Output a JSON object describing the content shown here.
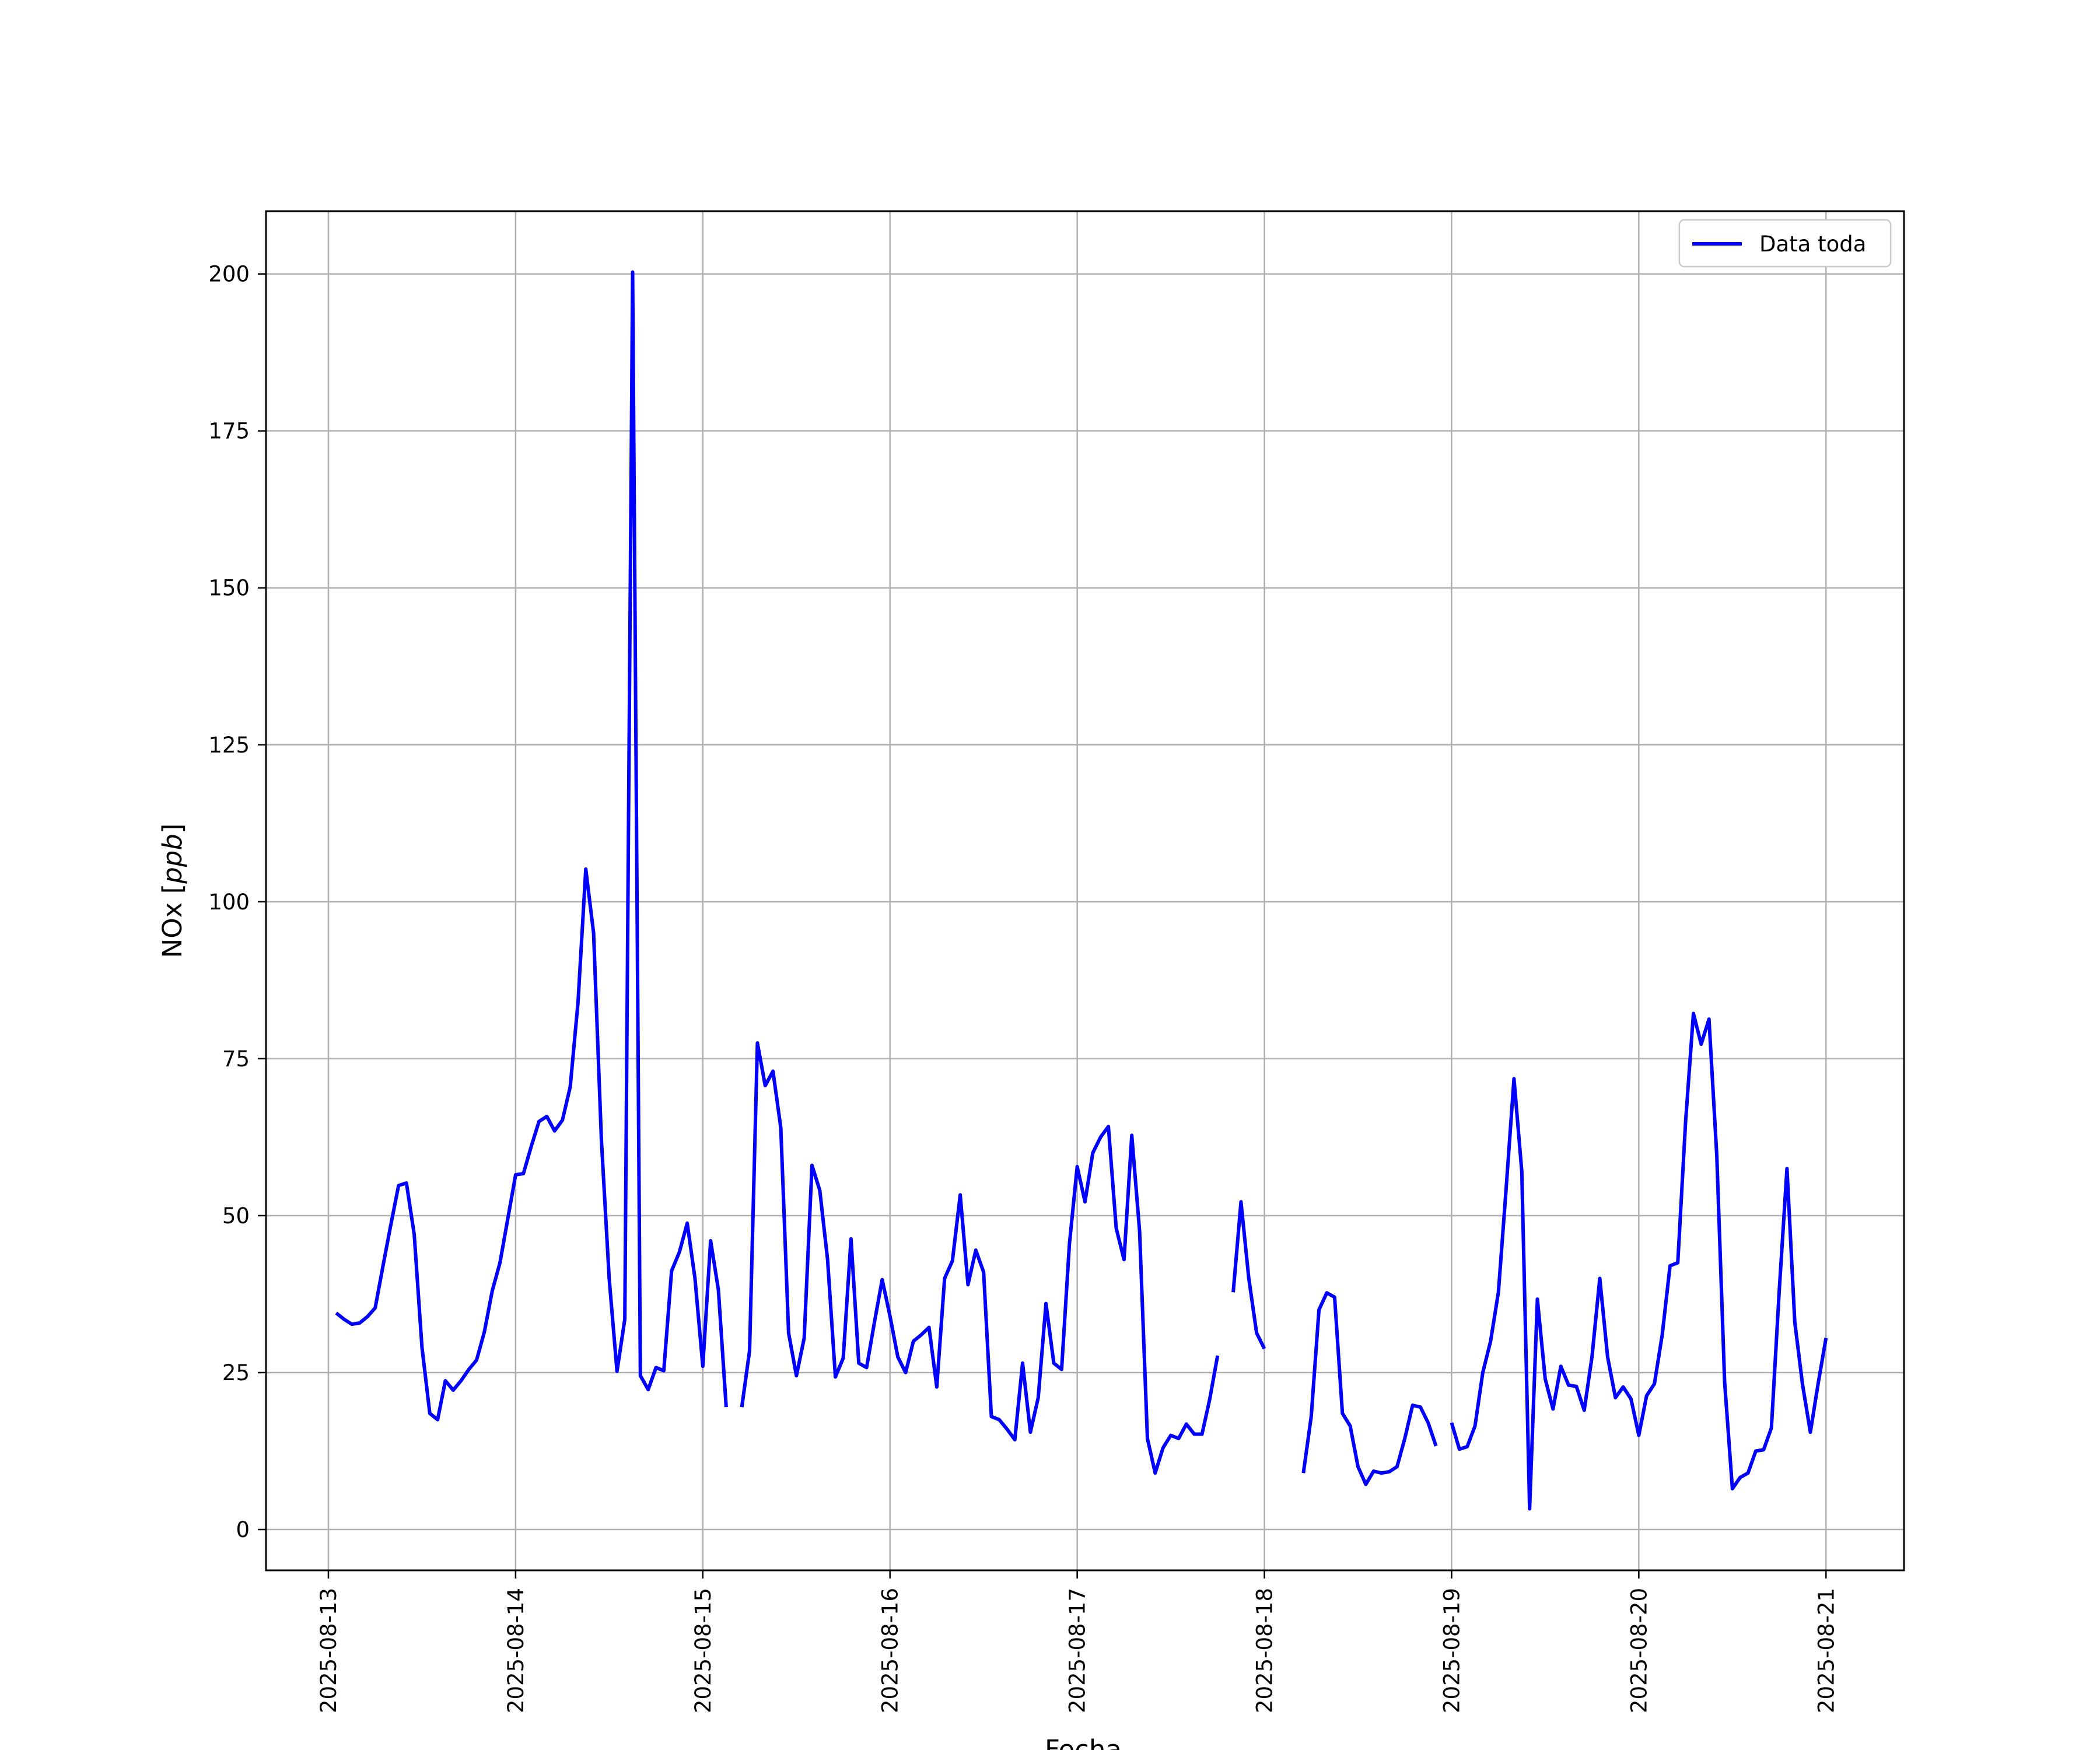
{
  "chart_data": {
    "type": "line",
    "title": "",
    "xlabel": "Fecha",
    "ylabel": "NOx [ppb]",
    "ylabel_main": "NOx [",
    "ylabel_unit": "ppb",
    "ylabel_close": "]",
    "xlim": [
      "2025-08-12 16:00",
      "2025-08-21 10:00"
    ],
    "ylim": [
      -6.5,
      210
    ],
    "x_ticks": [
      "2025-08-13",
      "2025-08-14",
      "2025-08-15",
      "2025-08-16",
      "2025-08-17",
      "2025-08-18",
      "2025-08-19",
      "2025-08-20",
      "2025-08-21"
    ],
    "y_ticks": [
      0,
      25,
      50,
      75,
      100,
      125,
      150,
      175,
      200
    ],
    "grid": true,
    "legend_position": "upper right",
    "line_color": "#0000ff",
    "series": [
      {
        "name": "Data toda",
        "segments": [
          [
            [
              "2025-08-13 01:00",
              34.5
            ],
            [
              "2025-08-13 02:00",
              33.5
            ],
            [
              "2025-08-13 03:00",
              32.7
            ],
            [
              "2025-08-13 04:00",
              32.9
            ],
            [
              "2025-08-13 05:00",
              33.9
            ],
            [
              "2025-08-13 06:00",
              35.3
            ],
            [
              "2025-08-13 07:00",
              42.0
            ],
            [
              "2025-08-13 08:00",
              48.5
            ],
            [
              "2025-08-13 09:00",
              54.8
            ],
            [
              "2025-08-13 10:00",
              55.2
            ],
            [
              "2025-08-13 11:00",
              47.0
            ],
            [
              "2025-08-13 12:00",
              29.0
            ],
            [
              "2025-08-13 13:00",
              18.5
            ],
            [
              "2025-08-13 14:00",
              17.5
            ],
            [
              "2025-08-13 15:00",
              23.7
            ],
            [
              "2025-08-13 16:00",
              22.2
            ],
            [
              "2025-08-13 17:00",
              23.7
            ],
            [
              "2025-08-13 18:00",
              25.5
            ],
            [
              "2025-08-13 19:00",
              27.0
            ],
            [
              "2025-08-13 20:00",
              31.5
            ],
            [
              "2025-08-13 21:00",
              38.0
            ],
            [
              "2025-08-13 22:00",
              42.5
            ],
            [
              "2025-08-13 23:00",
              49.5
            ],
            [
              "2025-08-14 00:00",
              56.5
            ],
            [
              "2025-08-14 01:00",
              56.7
            ],
            [
              "2025-08-14 02:00",
              61.0
            ],
            [
              "2025-08-14 03:00",
              65.0
            ],
            [
              "2025-08-14 04:00",
              65.8
            ],
            [
              "2025-08-14 05:00",
              63.5
            ],
            [
              "2025-08-14 06:00",
              65.2
            ],
            [
              "2025-08-14 07:00",
              70.5
            ],
            [
              "2025-08-14 08:00",
              84.0
            ],
            [
              "2025-08-14 09:00",
              105.2
            ],
            [
              "2025-08-14 10:00",
              95.0
            ],
            [
              "2025-08-14 11:00",
              62.0
            ],
            [
              "2025-08-14 12:00",
              40.0
            ],
            [
              "2025-08-14 13:00",
              25.2
            ],
            [
              "2025-08-14 14:00",
              33.5
            ],
            [
              "2025-08-14 15:00",
              200.3
            ],
            [
              "2025-08-14 16:00",
              24.5
            ],
            [
              "2025-08-14 17:00",
              22.3
            ],
            [
              "2025-08-14 18:00",
              25.8
            ],
            [
              "2025-08-14 19:00",
              25.3
            ],
            [
              "2025-08-14 20:00",
              41.2
            ],
            [
              "2025-08-14 21:00",
              44.2
            ],
            [
              "2025-08-14 22:00",
              48.8
            ],
            [
              "2025-08-14 23:00",
              40.0
            ],
            [
              "2025-08-15 00:00",
              26.0
            ],
            [
              "2025-08-15 01:00",
              46.0
            ],
            [
              "2025-08-15 02:00",
              38.2
            ],
            [
              "2025-08-15 03:00",
              19.5
            ]
          ],
          [
            [
              "2025-08-15 05:00",
              19.5
            ],
            [
              "2025-08-15 06:00",
              28.5
            ],
            [
              "2025-08-15 07:00",
              77.5
            ],
            [
              "2025-08-15 08:00",
              70.7
            ],
            [
              "2025-08-15 09:00",
              73.0
            ],
            [
              "2025-08-15 10:00",
              64.0
            ],
            [
              "2025-08-15 11:00",
              31.3
            ],
            [
              "2025-08-15 12:00",
              24.5
            ],
            [
              "2025-08-15 13:00",
              30.5
            ],
            [
              "2025-08-15 14:00",
              58.0
            ],
            [
              "2025-08-15 15:00",
              54.0
            ],
            [
              "2025-08-15 16:00",
              43.0
            ],
            [
              "2025-08-15 17:00",
              24.3
            ],
            [
              "2025-08-15 18:00",
              27.3
            ],
            [
              "2025-08-15 19:00",
              46.3
            ],
            [
              "2025-08-15 20:00",
              26.5
            ],
            [
              "2025-08-15 21:00",
              25.8
            ],
            [
              "2025-08-15 22:00",
              33.0
            ],
            [
              "2025-08-15 23:00",
              39.8
            ],
            [
              "2025-08-16 00:00",
              34.0
            ],
            [
              "2025-08-16 01:00",
              27.5
            ],
            [
              "2025-08-16 02:00",
              25.0
            ],
            [
              "2025-08-16 03:00",
              30.0
            ],
            [
              "2025-08-16 04:00",
              31.0
            ],
            [
              "2025-08-16 05:00",
              32.2
            ],
            [
              "2025-08-16 06:00",
              22.7
            ],
            [
              "2025-08-16 07:00",
              40.0
            ],
            [
              "2025-08-16 08:00",
              42.8
            ],
            [
              "2025-08-16 09:00",
              53.3
            ],
            [
              "2025-08-16 10:00",
              39.0
            ],
            [
              "2025-08-16 11:00",
              44.5
            ],
            [
              "2025-08-16 12:00",
              41.0
            ],
            [
              "2025-08-16 13:00",
              18.0
            ],
            [
              "2025-08-16 14:00",
              17.5
            ],
            [
              "2025-08-16 15:00",
              16.0
            ],
            [
              "2025-08-16 16:00",
              14.3
            ],
            [
              "2025-08-16 17:00",
              26.5
            ],
            [
              "2025-08-16 18:00",
              15.5
            ],
            [
              "2025-08-16 19:00",
              21.0
            ],
            [
              "2025-08-16 20:00",
              36.0
            ],
            [
              "2025-08-16 21:00",
              26.5
            ],
            [
              "2025-08-16 22:00",
              25.5
            ],
            [
              "2025-08-16 23:00",
              45.5
            ],
            [
              "2025-08-17 00:00",
              57.8
            ],
            [
              "2025-08-17 01:00",
              52.2
            ],
            [
              "2025-08-17 02:00",
              60.0
            ],
            [
              "2025-08-17 03:00",
              62.5
            ],
            [
              "2025-08-17 04:00",
              64.2
            ],
            [
              "2025-08-17 05:00",
              48.0
            ],
            [
              "2025-08-17 06:00",
              43.0
            ],
            [
              "2025-08-17 07:00",
              62.8
            ],
            [
              "2025-08-17 08:00",
              47.5
            ],
            [
              "2025-08-17 09:00",
              14.5
            ],
            [
              "2025-08-17 10:00",
              9.0
            ],
            [
              "2025-08-17 11:00",
              13.0
            ],
            [
              "2025-08-17 12:00",
              15.0
            ],
            [
              "2025-08-17 13:00",
              14.5
            ],
            [
              "2025-08-17 14:00",
              16.8
            ],
            [
              "2025-08-17 15:00",
              15.2
            ],
            [
              "2025-08-17 16:00",
              15.2
            ],
            [
              "2025-08-17 17:00",
              20.8
            ],
            [
              "2025-08-17 18:00",
              27.7
            ]
          ],
          [
            [
              "2025-08-17 20:00",
              37.8
            ],
            [
              "2025-08-17 21:00",
              52.2
            ],
            [
              "2025-08-17 22:00",
              40.0
            ],
            [
              "2025-08-17 23:00",
              31.3
            ],
            [
              "2025-08-18 00:00",
              28.8
            ]
          ],
          [
            [
              "2025-08-18 05:00",
              9.0
            ],
            [
              "2025-08-18 06:00",
              18.0
            ],
            [
              "2025-08-18 07:00",
              35.0
            ],
            [
              "2025-08-18 08:00",
              37.7
            ],
            [
              "2025-08-18 09:00",
              37.0
            ],
            [
              "2025-08-18 10:00",
              18.5
            ],
            [
              "2025-08-18 11:00",
              16.5
            ],
            [
              "2025-08-18 12:00",
              10.0
            ],
            [
              "2025-08-18 13:00",
              7.2
            ],
            [
              "2025-08-18 14:00",
              9.3
            ],
            [
              "2025-08-18 15:00",
              9.0
            ],
            [
              "2025-08-18 16:00",
              9.2
            ],
            [
              "2025-08-18 17:00",
              10.0
            ],
            [
              "2025-08-18 18:00",
              14.5
            ],
            [
              "2025-08-18 19:00",
              19.8
            ],
            [
              "2025-08-18 20:00",
              19.5
            ],
            [
              "2025-08-18 21:00",
              17.0
            ],
            [
              "2025-08-18 22:00",
              13.3
            ]
          ],
          [
            [
              "2025-08-19 00:00",
              17.0
            ],
            [
              "2025-08-19 01:00",
              12.8
            ],
            [
              "2025-08-19 02:00",
              13.2
            ],
            [
              "2025-08-19 03:00",
              16.5
            ],
            [
              "2025-08-19 04:00",
              25.0
            ],
            [
              "2025-08-19 05:00",
              30.0
            ],
            [
              "2025-08-19 06:00",
              37.8
            ],
            [
              "2025-08-19 07:00",
              54.5
            ],
            [
              "2025-08-19 08:00",
              71.8
            ],
            [
              "2025-08-19 09:00",
              57.0
            ],
            [
              "2025-08-19 10:00",
              3.3
            ],
            [
              "2025-08-19 11:00",
              36.7
            ],
            [
              "2025-08-19 12:00",
              24.0
            ],
            [
              "2025-08-19 13:00",
              19.2
            ],
            [
              "2025-08-19 14:00",
              26.0
            ],
            [
              "2025-08-19 15:00",
              23.0
            ],
            [
              "2025-08-19 16:00",
              22.8
            ],
            [
              "2025-08-19 17:00",
              19.0
            ],
            [
              "2025-08-19 18:00",
              27.5
            ],
            [
              "2025-08-19 19:00",
              40.0
            ],
            [
              "2025-08-19 20:00",
              27.5
            ],
            [
              "2025-08-19 21:00",
              21.0
            ],
            [
              "2025-08-19 22:00",
              22.7
            ],
            [
              "2025-08-19 23:00",
              20.8
            ],
            [
              "2025-08-20 00:00",
              15.0
            ],
            [
              "2025-08-20 01:00",
              21.3
            ],
            [
              "2025-08-20 02:00",
              23.2
            ],
            [
              "2025-08-20 03:00",
              31.0
            ],
            [
              "2025-08-20 04:00",
              42.0
            ],
            [
              "2025-08-20 05:00",
              42.5
            ],
            [
              "2025-08-20 06:00",
              65.0
            ],
            [
              "2025-08-20 07:00",
              82.2
            ],
            [
              "2025-08-20 08:00",
              77.3
            ],
            [
              "2025-08-20 09:00",
              81.3
            ],
            [
              "2025-08-20 10:00",
              59.5
            ],
            [
              "2025-08-20 11:00",
              23.5
            ],
            [
              "2025-08-20 12:00",
              6.5
            ],
            [
              "2025-08-20 13:00",
              8.3
            ],
            [
              "2025-08-20 14:00",
              9.0
            ],
            [
              "2025-08-20 15:00",
              12.5
            ],
            [
              "2025-08-20 16:00",
              12.7
            ],
            [
              "2025-08-20 17:00",
              16.2
            ],
            [
              "2025-08-20 18:00",
              38.0
            ],
            [
              "2025-08-20 19:00",
              57.5
            ],
            [
              "2025-08-20 20:00",
              33.0
            ],
            [
              "2025-08-20 21:00",
              23.0
            ],
            [
              "2025-08-20 22:00",
              15.5
            ],
            [
              "2025-08-20 23:00",
              23.3
            ],
            [
              "2025-08-21 00:00",
              30.5
            ]
          ]
        ]
      }
    ]
  }
}
